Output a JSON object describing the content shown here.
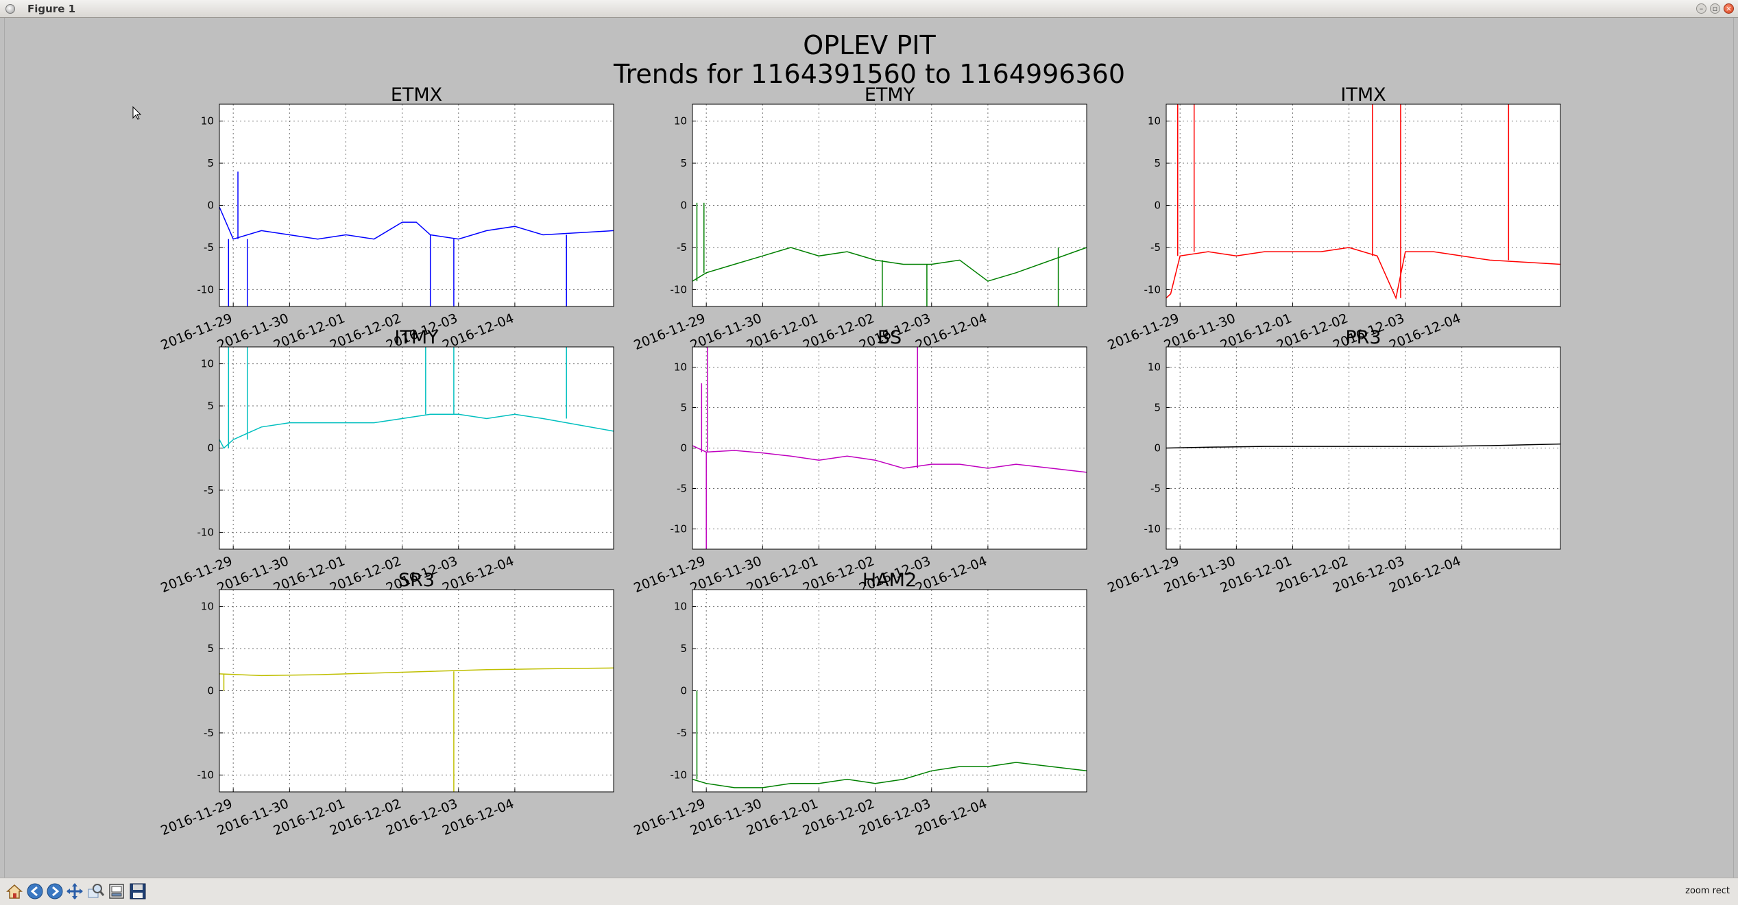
{
  "window": {
    "title": "Figure 1"
  },
  "figure": {
    "title_line1": "OPLEV PIT",
    "title_line2": "Trends for 1164391560 to 1164996360"
  },
  "toolbar": {
    "tools": [
      "home-icon",
      "back-arrow-icon",
      "forward-arrow-icon",
      "pan-cross-icon",
      "zoom-magnifier-icon",
      "subplots-config-icon",
      "save-floppy-icon"
    ],
    "mode_status": "zoom rect"
  },
  "colors": {
    "background": "#bfbfbf",
    "ETMX": "#0000ff",
    "ETMY": "#008000",
    "ITMX": "#ff0000",
    "ITMY": "#00bfbf",
    "BS": "#bf00bf",
    "PR3": "#000000",
    "SR3": "#bfbf00",
    "HAM2": "#008000"
  },
  "chart_data": [
    {
      "type": "line",
      "title": "ETMX",
      "color": "#0000ff",
      "x_range": [
        "2016-11-28T18:06:00",
        "2016-12-05T18:06:00"
      ],
      "ylim": [
        -12,
        12
      ],
      "yticks": [
        10,
        5,
        0,
        -5,
        -10
      ],
      "xticks": [
        "2016-11-29",
        "2016-11-30",
        "2016-12-01",
        "2016-12-02",
        "2016-12-03",
        "2016-12-04"
      ],
      "grid": true,
      "series": [
        {
          "x": [
            "2016-11-28T18:06",
            "2016-11-29T00:00",
            "2016-11-29T12:00",
            "2016-11-30T00:00",
            "2016-11-30T12:00",
            "2016-12-01T00:00",
            "2016-12-01T12:00",
            "2016-12-02T00:00",
            "2016-12-02T06:00",
            "2016-12-02T12:00",
            "2016-12-03T00:00",
            "2016-12-03T12:00",
            "2016-12-04T00:00",
            "2016-12-04T12:00",
            "2016-12-05T18:06"
          ],
          "y": [
            -0.2,
            -4,
            -3,
            -3.5,
            -4,
            -3.5,
            -4,
            -2,
            -2,
            -3.5,
            -4,
            -3,
            -2.5,
            -3.5,
            -3
          ]
        }
      ],
      "spikes": [
        {
          "x": "2016-11-28T22:00",
          "y": -12
        },
        {
          "x": "2016-11-29T02:00",
          "y": 4
        },
        {
          "x": "2016-11-29T06:00",
          "y": -12
        },
        {
          "x": "2016-12-02T12:00",
          "y": -12
        },
        {
          "x": "2016-12-02T22:00",
          "y": -12
        },
        {
          "x": "2016-12-04T22:00",
          "y": -12
        }
      ]
    },
    {
      "type": "line",
      "title": "ETMY",
      "color": "#008000",
      "x_range": [
        "2016-11-28T18:06:00",
        "2016-12-05T18:06:00"
      ],
      "ylim": [
        -12,
        12
      ],
      "yticks": [
        10,
        5,
        0,
        -5,
        -10
      ],
      "xticks": [
        "2016-11-29",
        "2016-11-30",
        "2016-12-01",
        "2016-12-02",
        "2016-12-03",
        "2016-12-04"
      ],
      "grid": true,
      "series": [
        {
          "x": [
            "2016-11-28T18:06",
            "2016-11-29T00:00",
            "2016-11-29T12:00",
            "2016-11-30T00:00",
            "2016-11-30T12:00",
            "2016-12-01T00:00",
            "2016-12-01T12:00",
            "2016-12-02T00:00",
            "2016-12-02T12:00",
            "2016-12-03T00:00",
            "2016-12-03T12:00",
            "2016-12-04T00:00",
            "2016-12-04T12:00",
            "2016-12-05T18:06"
          ],
          "y": [
            -9,
            -8,
            -7,
            -6,
            -5,
            -6,
            -5.5,
            -6.5,
            -7,
            -7,
            -6.5,
            -9,
            -8,
            -5
          ]
        }
      ],
      "spikes": [
        {
          "x": "2016-11-28T20:00",
          "y": 0.3
        },
        {
          "x": "2016-11-28T23:00",
          "y": 0.3
        },
        {
          "x": "2016-12-02T03:00",
          "y": -12
        },
        {
          "x": "2016-12-02T22:00",
          "y": -12
        },
        {
          "x": "2016-12-05T06:00",
          "y": -12
        }
      ]
    },
    {
      "type": "line",
      "title": "ITMX",
      "color": "#ff0000",
      "x_range": [
        "2016-11-28T18:06:00",
        "2016-12-05T18:06:00"
      ],
      "ylim": [
        -12,
        12
      ],
      "yticks": [
        10,
        5,
        0,
        -5,
        -10
      ],
      "xticks": [
        "2016-11-29",
        "2016-11-30",
        "2016-12-01",
        "2016-12-02",
        "2016-12-03",
        "2016-12-04"
      ],
      "grid": true,
      "series": [
        {
          "x": [
            "2016-11-28T18:06",
            "2016-11-28T20:00",
            "2016-11-29T00:00",
            "2016-11-29T12:00",
            "2016-11-30T00:00",
            "2016-11-30T12:00",
            "2016-12-01T00:00",
            "2016-12-01T12:00",
            "2016-12-02T00:00",
            "2016-12-02T12:00",
            "2016-12-02T20:00",
            "2016-12-03T00:00",
            "2016-12-03T12:00",
            "2016-12-04T00:00",
            "2016-12-04T12:00",
            "2016-12-05T18:06"
          ],
          "y": [
            -11,
            -10.5,
            -6,
            -5.5,
            -6,
            -5.5,
            -5.5,
            -5.5,
            -5,
            -6,
            -11,
            -5.5,
            -5.5,
            -6,
            -6.5,
            -7
          ]
        }
      ],
      "spikes": [
        {
          "x": "2016-11-28T23:00",
          "y": 12
        },
        {
          "x": "2016-11-29T06:00",
          "y": 12
        },
        {
          "x": "2016-12-02T10:00",
          "y": 12
        },
        {
          "x": "2016-12-02T22:00",
          "y": 12
        },
        {
          "x": "2016-12-04T20:00",
          "y": 12
        }
      ]
    },
    {
      "type": "line",
      "title": "ITMY",
      "color": "#00bfbf",
      "x_range": [
        "2016-11-28T18:06:00",
        "2016-12-05T18:06:00"
      ],
      "ylim": [
        -12,
        12
      ],
      "yticks": [
        10,
        5,
        0,
        -5,
        -10
      ],
      "xticks": [
        "2016-11-29",
        "2016-11-30",
        "2016-12-01",
        "2016-12-02",
        "2016-12-03",
        "2016-12-04"
      ],
      "grid": true,
      "series": [
        {
          "x": [
            "2016-11-28T18:06",
            "2016-11-28T20:00",
            "2016-11-29T00:00",
            "2016-11-29T12:00",
            "2016-11-30T00:00",
            "2016-11-30T12:00",
            "2016-12-01T00:00",
            "2016-12-01T12:00",
            "2016-12-02T00:00",
            "2016-12-02T12:00",
            "2016-12-03T00:00",
            "2016-12-03T12:00",
            "2016-12-04T00:00",
            "2016-12-04T12:00",
            "2016-12-05T18:06"
          ],
          "y": [
            1,
            0,
            1,
            2.5,
            3,
            3,
            3,
            3,
            3.5,
            4,
            4,
            3.5,
            4,
            3.5,
            2
          ]
        }
      ],
      "spikes": [
        {
          "x": "2016-11-28T22:00",
          "y": 12
        },
        {
          "x": "2016-11-29T06:00",
          "y": 12
        },
        {
          "x": "2016-12-02T10:00",
          "y": 12
        },
        {
          "x": "2016-12-02T22:00",
          "y": 12
        },
        {
          "x": "2016-12-04T22:00",
          "y": 12
        }
      ]
    },
    {
      "type": "line",
      "title": "BS",
      "color": "#bf00bf",
      "x_range": [
        "2016-11-28T18:06:00",
        "2016-12-05T18:06:00"
      ],
      "ylim": [
        -12.5,
        12.5
      ],
      "yticks": [
        10,
        5,
        0,
        -5,
        -10
      ],
      "xticks": [
        "2016-11-29",
        "2016-11-30",
        "2016-12-01",
        "2016-12-02",
        "2016-12-03",
        "2016-12-04"
      ],
      "grid": true,
      "series": [
        {
          "x": [
            "2016-11-28T18:06",
            "2016-11-29T00:00",
            "2016-11-29T12:00",
            "2016-11-30T00:00",
            "2016-11-30T12:00",
            "2016-12-01T00:00",
            "2016-12-01T12:00",
            "2016-12-02T00:00",
            "2016-12-02T12:00",
            "2016-12-03T00:00",
            "2016-12-03T12:00",
            "2016-12-04T00:00",
            "2016-12-04T12:00",
            "2016-12-05T18:06"
          ],
          "y": [
            0.3,
            -0.5,
            -0.3,
            -0.6,
            -1,
            -1.5,
            -1,
            -1.5,
            -2.5,
            -2,
            -2,
            -2.5,
            -2,
            -3
          ]
        }
      ],
      "spikes": [
        {
          "x": "2016-11-28T22:00",
          "y": 8
        },
        {
          "x": "2016-11-29T00:00",
          "y": -12.5
        },
        {
          "x": "2016-11-29T00:30",
          "y": 12.5
        },
        {
          "x": "2016-12-02T18:00",
          "y": 12.5
        }
      ]
    },
    {
      "type": "line",
      "title": "PR3",
      "color": "#000000",
      "x_range": [
        "2016-11-28T18:06:00",
        "2016-12-05T18:06:00"
      ],
      "ylim": [
        -12.5,
        12.5
      ],
      "yticks": [
        10,
        5,
        0,
        -5,
        -10
      ],
      "xticks": [
        "2016-11-29",
        "2016-11-30",
        "2016-12-01",
        "2016-12-02",
        "2016-12-03",
        "2016-12-04"
      ],
      "grid": true,
      "series": [
        {
          "x": [
            "2016-11-28T18:06",
            "2016-11-29T12:00",
            "2016-11-30T12:00",
            "2016-12-01T12:00",
            "2016-12-02T12:00",
            "2016-12-03T12:00",
            "2016-12-04T12:00",
            "2016-12-05T18:06"
          ],
          "y": [
            0,
            0.1,
            0.2,
            0.2,
            0.2,
            0.2,
            0.3,
            0.5
          ]
        }
      ],
      "spikes": []
    },
    {
      "type": "line",
      "title": "SR3",
      "color": "#bfbf00",
      "x_range": [
        "2016-11-28T18:06:00",
        "2016-12-05T18:06:00"
      ],
      "ylim": [
        -12,
        12
      ],
      "yticks": [
        10,
        5,
        0,
        -5,
        -10
      ],
      "xticks": [
        "2016-11-29",
        "2016-11-30",
        "2016-12-01",
        "2016-12-02",
        "2016-12-03",
        "2016-12-04"
      ],
      "grid": true,
      "series": [
        {
          "x": [
            "2016-11-28T18:06",
            "2016-11-29T12:00",
            "2016-11-30T12:00",
            "2016-12-01T12:00",
            "2016-12-02T12:00",
            "2016-12-03T12:00",
            "2016-12-04T12:00",
            "2016-12-05T18:06"
          ],
          "y": [
            2,
            1.8,
            1.9,
            2.1,
            2.3,
            2.5,
            2.6,
            2.7
          ]
        }
      ],
      "spikes": [
        {
          "x": "2016-11-28T20:00",
          "y": 0
        },
        {
          "x": "2016-12-02T22:00",
          "y": -12
        }
      ]
    },
    {
      "type": "line",
      "title": "HAM2",
      "color": "#008000",
      "x_range": [
        "2016-11-28T18:06:00",
        "2016-12-05T18:06:00"
      ],
      "ylim": [
        -12,
        12
      ],
      "yticks": [
        10,
        5,
        0,
        -5,
        -10
      ],
      "xticks": [
        "2016-11-29",
        "2016-11-30",
        "2016-12-01",
        "2016-12-02",
        "2016-12-03",
        "2016-12-04"
      ],
      "grid": true,
      "series": [
        {
          "x": [
            "2016-11-28T18:06",
            "2016-11-29T00:00",
            "2016-11-29T12:00",
            "2016-11-30T00:00",
            "2016-11-30T12:00",
            "2016-12-01T00:00",
            "2016-12-01T12:00",
            "2016-12-02T00:00",
            "2016-12-02T12:00",
            "2016-12-03T00:00",
            "2016-12-03T12:00",
            "2016-12-04T00:00",
            "2016-12-04T12:00",
            "2016-12-05T18:06"
          ],
          "y": [
            -10.5,
            -11,
            -11.5,
            -11.5,
            -11,
            -11,
            -10.5,
            -11,
            -10.5,
            -9.5,
            -9,
            -9,
            -8.5,
            -9.5
          ]
        }
      ],
      "spikes": [
        {
          "x": "2016-11-28T20:00",
          "y": 0
        }
      ]
    }
  ]
}
